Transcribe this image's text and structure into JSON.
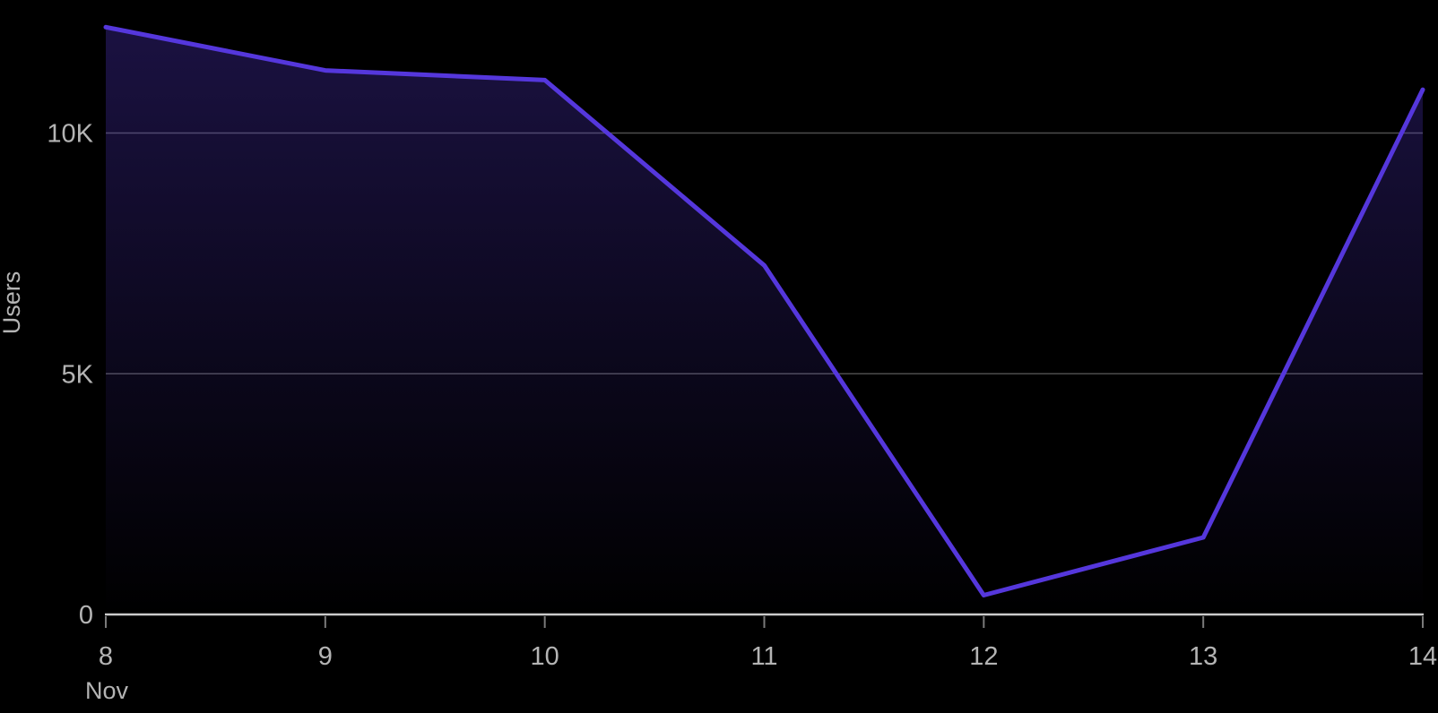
{
  "page": {
    "background": "#000000"
  },
  "chart_data": {
    "type": "area",
    "title": "",
    "ylabel": "Users",
    "xlabel_month": "Nov",
    "x_tick_labels": [
      "8",
      "9",
      "10",
      "11",
      "12",
      "13",
      "14"
    ],
    "series": [
      {
        "name": "Users",
        "values": [
          12200,
          11300,
          11100,
          7250,
          400,
          1600,
          10900
        ]
      }
    ],
    "y_ticks": [
      {
        "value": 0,
        "label": "0"
      },
      {
        "value": 5000,
        "label": "5K"
      },
      {
        "value": 10000,
        "label": "10K"
      }
    ],
    "ylim": [
      0,
      12760
    ],
    "grid": "horizontal",
    "legend": "none",
    "colors": {
      "line": "#5537dc",
      "area_top": "rgba(88,58,216,0.30)",
      "area_bottom": "rgba(88,58,216,0)",
      "background": "#000000",
      "grid_line": "rgba(255,255,255,0.30)",
      "axis_line": "#cccccc",
      "tick_mark": "#7a7a7a",
      "tick_text": "#b4b4b4"
    }
  }
}
